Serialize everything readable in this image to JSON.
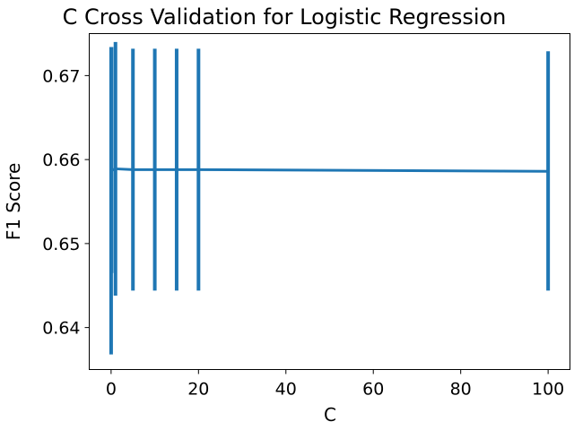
{
  "chart_data": {
    "type": "line",
    "title": "C Cross Validation for Logistic Regression",
    "xlabel": "C",
    "ylabel": "F1 Score",
    "xlim": [
      -5,
      105
    ],
    "ylim": [
      0.635,
      0.675
    ],
    "xticks": [
      0,
      20,
      40,
      60,
      80,
      100
    ],
    "yticks": [
      0.64,
      0.65,
      0.66,
      0.67
    ],
    "xtick_labels": [
      "0",
      "20",
      "40",
      "60",
      "80",
      "100"
    ],
    "ytick_labels": [
      "0.64",
      "0.65",
      "0.66",
      "0.67"
    ],
    "grid": false,
    "series": [
      {
        "color": "#1f77b4",
        "x": [
          0.01,
          0.1,
          1,
          5,
          10,
          15,
          20,
          100
        ],
        "y": [
          0.6551,
          0.6587,
          0.6589,
          0.6588,
          0.6588,
          0.6588,
          0.6588,
          0.6586
        ],
        "error_low": [
          0.6368,
          0.6465,
          0.6438,
          0.6444,
          0.6444,
          0.6444,
          0.6444,
          0.6444
        ],
        "error_high": [
          0.6734,
          0.6734,
          0.674,
          0.6732,
          0.6732,
          0.6732,
          0.6732,
          0.6729
        ]
      }
    ]
  }
}
